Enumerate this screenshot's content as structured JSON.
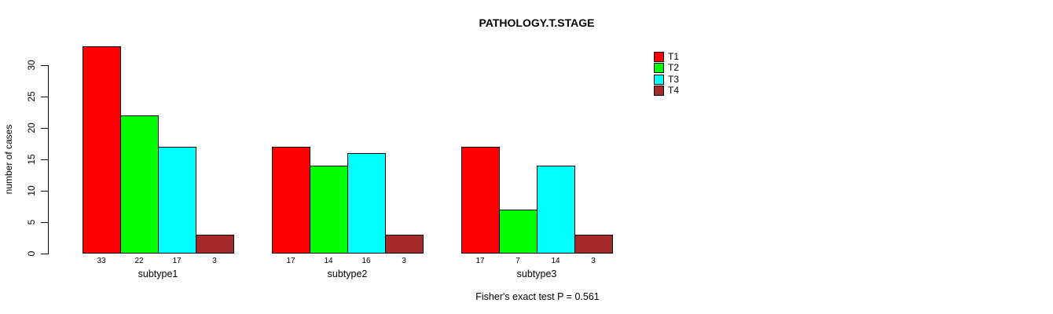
{
  "chart_data": {
    "type": "bar",
    "title": "PATHOLOGY.T.STAGE",
    "ylabel": "number of cases",
    "xlabel": "",
    "categories": [
      "subtype1",
      "subtype2",
      "subtype3"
    ],
    "series": [
      {
        "name": "T1",
        "color": "#FF0000",
        "values": [
          33,
          17,
          17
        ]
      },
      {
        "name": "T2",
        "color": "#00FF00",
        "values": [
          22,
          14,
          7
        ]
      },
      {
        "name": "T3",
        "color": "#00FFFF",
        "values": [
          17,
          16,
          14
        ]
      },
      {
        "name": "T4",
        "color": "#A52A2A",
        "values": [
          3,
          3,
          3
        ]
      }
    ],
    "yticks": [
      0,
      5,
      10,
      15,
      20,
      25,
      30
    ],
    "ylim": [
      0,
      33
    ],
    "grid": false,
    "legend_position": "top-right",
    "legend_labels": [
      "T1",
      "T2",
      "T3",
      "T4"
    ],
    "bar_value_labels_shown": true,
    "annotation": "Fisher's exact test P = 0.561"
  }
}
